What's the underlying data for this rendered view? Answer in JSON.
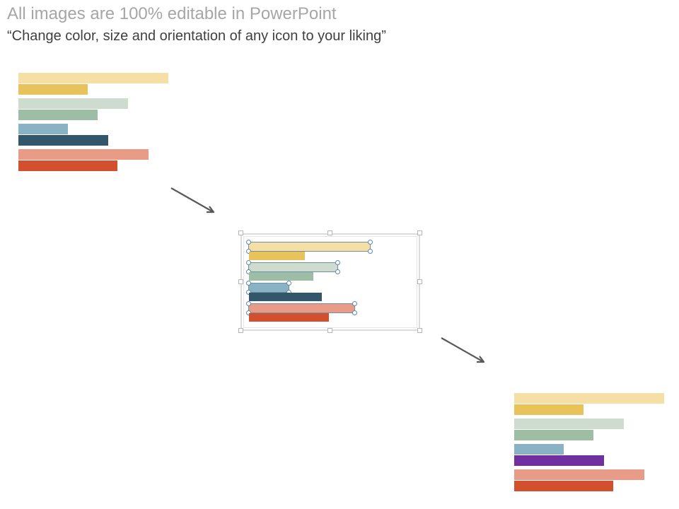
{
  "header": {
    "title": "All images are 100% editable in PowerPoint",
    "subtitle": "“Change color, size and orientation of any icon to your liking”"
  },
  "colors": {
    "light_yellow": "#f5dfa5",
    "yellow": "#e8c25a",
    "light_green": "#cddccf",
    "green": "#9dbea5",
    "light_blue": "#89b3c4",
    "dark_teal": "#33576a",
    "purple": "#7030a0",
    "light_red": "#e89b87",
    "red": "#d2502d",
    "arrow": "#595959"
  },
  "chart_data": [
    {
      "type": "bar",
      "orientation": "horizontal",
      "values": [
        1.0,
        0.46,
        0.73,
        0.53,
        0.33,
        0.6,
        0.87,
        0.66
      ],
      "colors": [
        "#f5dfa5",
        "#e8c25a",
        "#cddccf",
        "#9dbea5",
        "#89b3c4",
        "#33576a",
        "#e89b87",
        "#d2502d"
      ]
    },
    {
      "type": "bar",
      "orientation": "horizontal",
      "selected": true,
      "values": [
        1.0,
        0.46,
        0.73,
        0.53,
        0.33,
        0.6,
        0.87,
        0.66
      ],
      "colors": [
        "#f5dfa5",
        "#e8c25a",
        "#cddccf",
        "#9dbea5",
        "#89b3c4",
        "#33576a",
        "#e89b87",
        "#d2502d"
      ]
    },
    {
      "type": "bar",
      "orientation": "horizontal",
      "values": [
        1.0,
        0.46,
        0.73,
        0.53,
        0.33,
        0.6,
        0.87,
        0.66
      ],
      "colors": [
        "#f5dfa5",
        "#e8c25a",
        "#cddccf",
        "#9dbea5",
        "#89b3c4",
        "#7030a0",
        "#e89b87",
        "#d2502d"
      ]
    }
  ]
}
